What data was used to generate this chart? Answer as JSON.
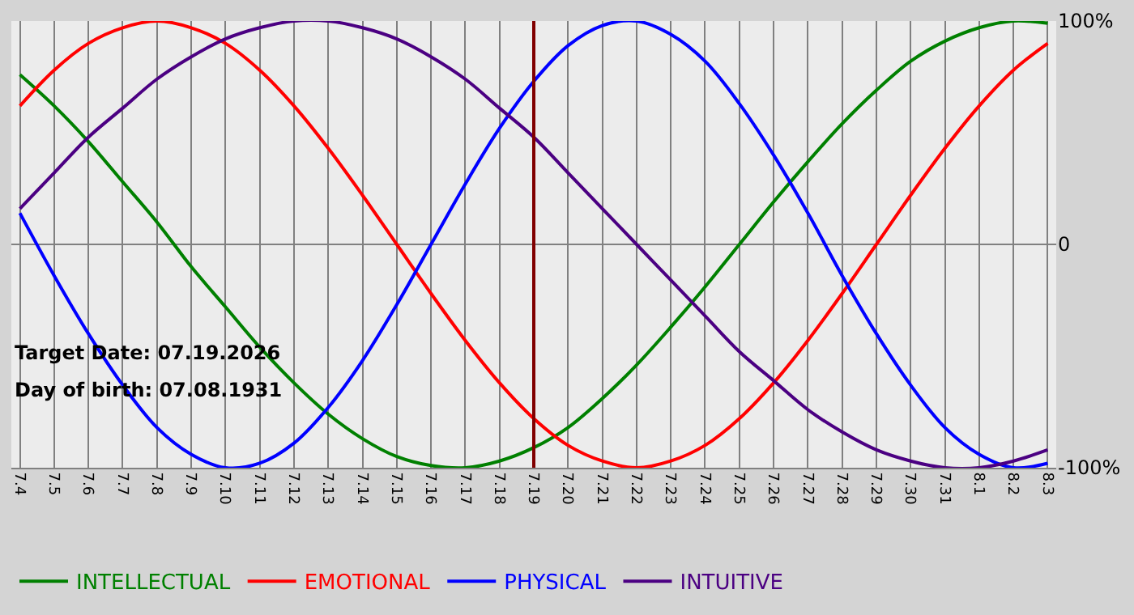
{
  "chart_data": {
    "type": "line",
    "categories": [
      "7.4",
      "7.5",
      "7.6",
      "7.7",
      "7.8",
      "7.9",
      "7.10",
      "7.11",
      "7.12",
      "7.13",
      "7.14",
      "7.15",
      "7.16",
      "7.17",
      "7.18",
      "7.19",
      "7.20",
      "7.21",
      "7.22",
      "7.23",
      "7.24",
      "7.25",
      "7.26",
      "7.27",
      "7.28",
      "7.29",
      "7.30",
      "7.31",
      "8.1",
      "8.2",
      "8.3"
    ],
    "series": [
      {
        "name": "INTELLECTUAL",
        "color": "#008000",
        "values": [
          76,
          62,
          46,
          28,
          10,
          -10,
          -28,
          -46,
          -62,
          -76,
          -87,
          -95,
          -99,
          -100,
          -97,
          -91,
          -82,
          -69,
          -54,
          -37,
          -19,
          0,
          19,
          37,
          54,
          69,
          82,
          91,
          97,
          100,
          99
        ]
      },
      {
        "name": "EMOTIONAL",
        "color": "#ff0000",
        "values": [
          62,
          78,
          90,
          97,
          100,
          97,
          90,
          78,
          62,
          43,
          22,
          0,
          -22,
          -43,
          -62,
          -78,
          -90,
          -97,
          -100,
          -97,
          -90,
          -78,
          -62,
          -43,
          -22,
          0,
          22,
          43,
          62,
          78,
          90
        ]
      },
      {
        "name": "PHYSICAL",
        "color": "#0000ff",
        "values": [
          14,
          -14,
          -40,
          -63,
          -82,
          -94,
          -100,
          -98,
          -89,
          -73,
          -52,
          -27,
          0,
          27,
          52,
          73,
          89,
          98,
          100,
          94,
          82,
          63,
          40,
          14,
          -14,
          -40,
          -63,
          -82,
          -94,
          -100,
          -98
        ]
      },
      {
        "name": "INTUITIVE",
        "color": "#4b0082",
        "values": [
          16,
          32,
          48,
          61,
          74,
          84,
          92,
          97,
          100,
          100,
          97,
          92,
          84,
          74,
          61,
          48,
          32,
          16,
          0,
          -16,
          -32,
          -48,
          -61,
          -74,
          -84,
          -92,
          -97,
          -100,
          -100,
          -97,
          -92
        ]
      }
    ],
    "ylim": [
      -100,
      100
    ],
    "yticks": [
      {
        "value": 100,
        "label": "100%"
      },
      0,
      {
        "value": -100,
        "label": "-100%"
      }
    ],
    "ref_lines": [
      {
        "axis": "x",
        "value": "7.19",
        "color": "#800000"
      }
    ],
    "annotations": [
      "Target Date: 07.19.2026",
      "Day of birth: 07.08.1931"
    ],
    "grid": true,
    "legend": "bottom",
    "marker": "none",
    "line_style": "solid"
  }
}
